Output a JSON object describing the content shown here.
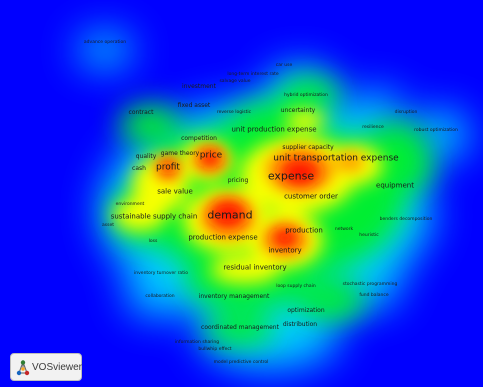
{
  "app": {
    "name": "VOSviewer"
  },
  "density_colors": [
    "#0000ff",
    "#00ff00",
    "#ffff00",
    "#ff0000"
  ],
  "keywords": [
    {
      "id": "advance-operation",
      "label": "advance operation"
    },
    {
      "id": "car-use",
      "label": "car use"
    },
    {
      "id": "long-term-interest-rate",
      "label": "long-term interest rate"
    },
    {
      "id": "salvage-value",
      "label": "salvage value"
    },
    {
      "id": "investment",
      "label": "investment"
    },
    {
      "id": "hybrid-optimization",
      "label": "hybrid optimization"
    },
    {
      "id": "fixed-asset",
      "label": "fixed asset"
    },
    {
      "id": "reverse-logistic",
      "label": "reverse logistic"
    },
    {
      "id": "contract",
      "label": "contract"
    },
    {
      "id": "uncertainty",
      "label": "uncertainty"
    },
    {
      "id": "disruption",
      "label": "disruption"
    },
    {
      "id": "resilience",
      "label": "resilience"
    },
    {
      "id": "unit-production-expense",
      "label": "unit production expense"
    },
    {
      "id": "robust-optimization",
      "label": "robust optimization"
    },
    {
      "id": "competition",
      "label": "competition"
    },
    {
      "id": "supplier-capacity",
      "label": "supplier capacity"
    },
    {
      "id": "quality",
      "label": "quality"
    },
    {
      "id": "game-theory",
      "label": "game theory"
    },
    {
      "id": "price",
      "label": "price"
    },
    {
      "id": "unit-transportation-expense",
      "label": "unit transportation expense"
    },
    {
      "id": "cash",
      "label": "cash"
    },
    {
      "id": "profit",
      "label": "profit"
    },
    {
      "id": "expense",
      "label": "expense"
    },
    {
      "id": "pricing",
      "label": "pricing"
    },
    {
      "id": "equipment",
      "label": "equipment"
    },
    {
      "id": "sale-value",
      "label": "sale value"
    },
    {
      "id": "customer-order",
      "label": "customer order"
    },
    {
      "id": "environment",
      "label": "environment"
    },
    {
      "id": "sustainable-supply-chain",
      "label": "sustainable supply chain"
    },
    {
      "id": "demand",
      "label": "demand"
    },
    {
      "id": "benders-decomposition",
      "label": "benders decomposition"
    },
    {
      "id": "asset",
      "label": "asset"
    },
    {
      "id": "production",
      "label": "production"
    },
    {
      "id": "network",
      "label": "network"
    },
    {
      "id": "heuristic",
      "label": "heuristic"
    },
    {
      "id": "production-expense",
      "label": "production expense"
    },
    {
      "id": "loss",
      "label": "loss"
    },
    {
      "id": "inventory",
      "label": "inventory"
    },
    {
      "id": "residual-inventory",
      "label": "residual inventory"
    },
    {
      "id": "inventory-turnover-ratio",
      "label": "inventory turnover ratio"
    },
    {
      "id": "loop-supply-chain",
      "label": "loop supply chain"
    },
    {
      "id": "stochastic-programming",
      "label": "stochastic programming"
    },
    {
      "id": "collaboration",
      "label": "collaboration"
    },
    {
      "id": "inventory-management",
      "label": "inventory management"
    },
    {
      "id": "fund-balance",
      "label": "fund balance"
    },
    {
      "id": "optimization",
      "label": "optimization"
    },
    {
      "id": "distribution",
      "label": "distribution"
    },
    {
      "id": "coordinated-management",
      "label": "coordinated management"
    },
    {
      "id": "information-sharing",
      "label": "information sharing"
    },
    {
      "id": "bullwhip-effect",
      "label": "bullwhip effect"
    },
    {
      "id": "model-predictive-control",
      "label": "model predictive control"
    }
  ]
}
